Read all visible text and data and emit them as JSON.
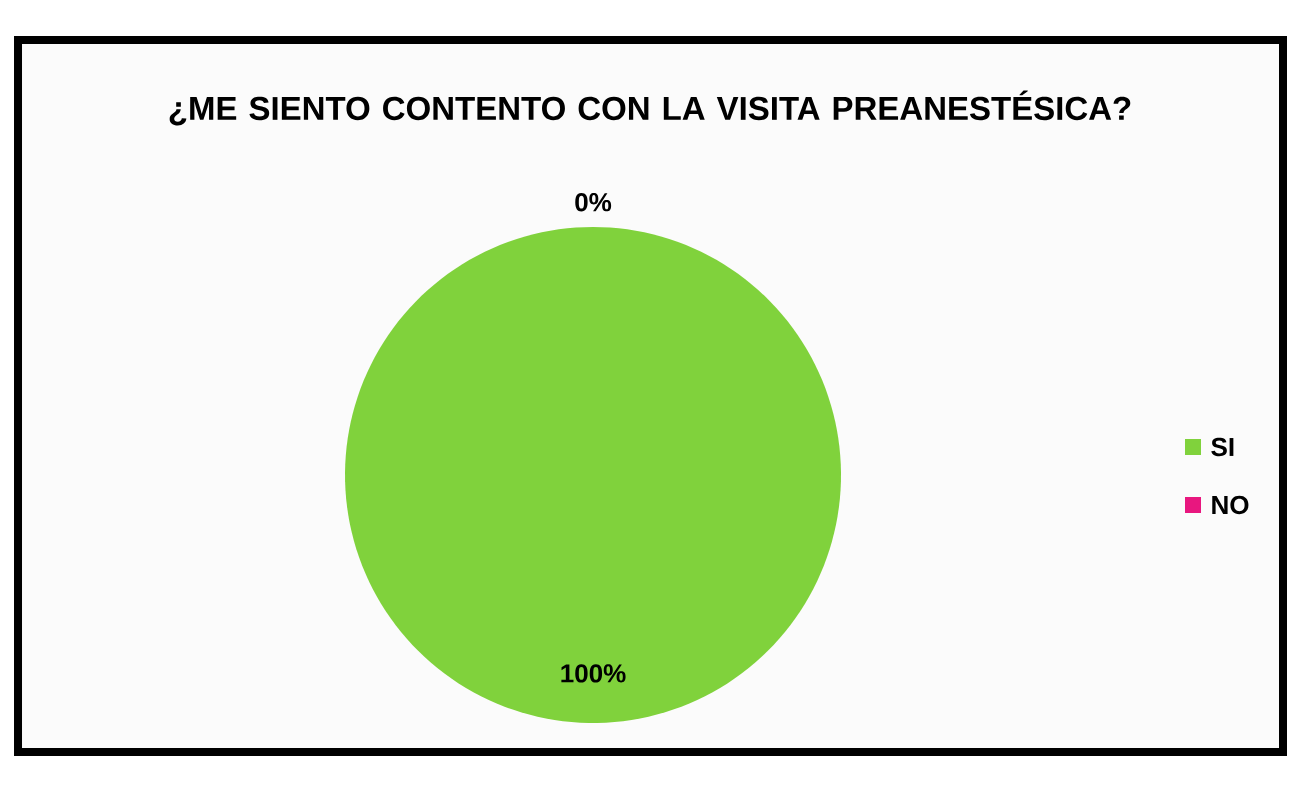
{
  "chart_data": {
    "type": "pie",
    "title": "¿ME SIENTO CONTENTO CON LA VISITA PREANESTÉSICA?",
    "categories": [
      "SI",
      "NO"
    ],
    "values": [
      100,
      0
    ],
    "colors": [
      "#80d23c",
      "#e8177f"
    ],
    "value_labels": [
      "100%",
      "0%"
    ],
    "legend": "right"
  }
}
